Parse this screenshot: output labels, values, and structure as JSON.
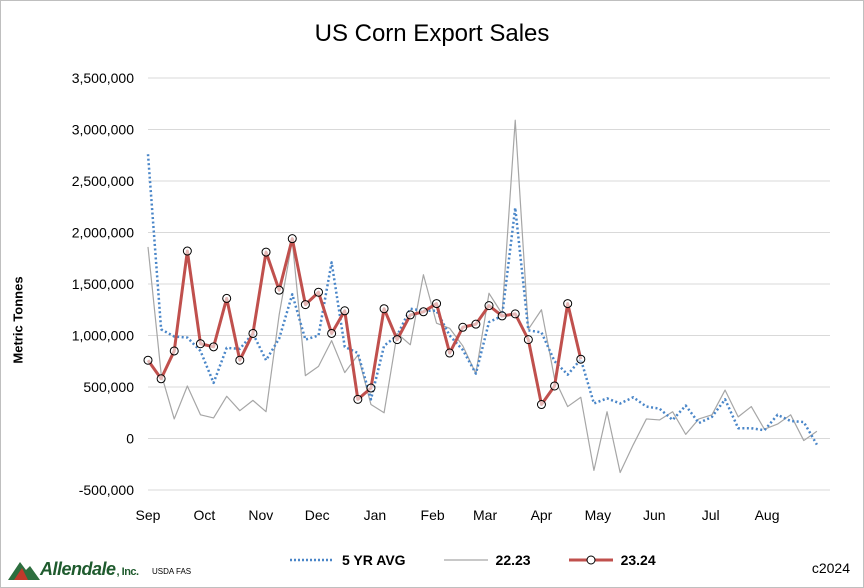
{
  "chart_data": {
    "type": "line",
    "title": "US Corn Export Sales",
    "ylabel": "Metric Tonnes",
    "xlabel": "",
    "ylim": [
      -500000,
      3500000
    ],
    "yticks": [
      -500000,
      0,
      500000,
      1000000,
      1500000,
      2000000,
      2500000,
      3000000,
      3500000
    ],
    "ytick_labels": [
      "-500,000",
      "0",
      "500,000",
      "1,000,000",
      "1,500,000",
      "2,000,000",
      "2,500,000",
      "3,000,000",
      "3,500,000"
    ],
    "week_count": 53,
    "month_labels": [
      "Sep",
      "Oct",
      "Nov",
      "Dec",
      "Jan",
      "Feb",
      "Mar",
      "Apr",
      "May",
      "Jun",
      "Jul",
      "Aug"
    ],
    "month_label_weeks": [
      0,
      4.3,
      8.6,
      12.9,
      17.3,
      21.7,
      25.7,
      30.0,
      34.3,
      38.6,
      42.9,
      47.2
    ],
    "grid": "horizontal",
    "legend_position": "bottom",
    "series": [
      {
        "name": "5 YR AVG",
        "style": "dotted",
        "color": "#4a86c8",
        "values": [
          2760000,
          1060000,
          990000,
          980000,
          850000,
          540000,
          880000,
          870000,
          1020000,
          760000,
          970000,
          1400000,
          960000,
          1000000,
          1710000,
          890000,
          830000,
          380000,
          900000,
          1000000,
          1260000,
          1240000,
          1240000,
          1000000,
          860000,
          630000,
          1130000,
          1190000,
          2240000,
          1050000,
          1030000,
          750000,
          620000,
          770000,
          340000,
          390000,
          340000,
          400000,
          310000,
          290000,
          180000,
          320000,
          150000,
          210000,
          380000,
          100000,
          100000,
          80000,
          230000,
          170000,
          160000,
          -60000
        ]
      },
      {
        "name": "22.23",
        "style": "solid-thin",
        "color": "#a6a6a6",
        "values": [
          1860000,
          630000,
          190000,
          510000,
          230000,
          200000,
          410000,
          270000,
          370000,
          260000,
          1200000,
          1920000,
          610000,
          700000,
          950000,
          640000,
          810000,
          330000,
          250000,
          1020000,
          910000,
          1590000,
          1120000,
          1070000,
          900000,
          630000,
          1410000,
          1210000,
          3090000,
          1060000,
          1250000,
          580000,
          310000,
          400000,
          -310000,
          260000,
          -330000,
          -60000,
          190000,
          180000,
          260000,
          40000,
          190000,
          230000,
          470000,
          210000,
          310000,
          90000,
          140000,
          230000,
          -20000,
          70000
        ]
      },
      {
        "name": "23.24",
        "style": "solid-marker",
        "color": "#c0504d",
        "values": [
          760000,
          580000,
          850000,
          1820000,
          920000,
          890000,
          1360000,
          760000,
          1020000,
          1810000,
          1440000,
          1940000,
          1300000,
          1420000,
          1020000,
          1240000,
          380000,
          490000,
          1260000,
          960000,
          1200000,
          1230000,
          1310000,
          830000,
          1080000,
          1110000,
          1290000,
          1190000,
          1210000,
          960000,
          330000,
          510000,
          1310000,
          770000
        ]
      }
    ]
  },
  "source_note": "USDA FAS",
  "logo": {
    "name": "Allendale",
    "suffix": ", Inc."
  },
  "copyright": "c2024"
}
